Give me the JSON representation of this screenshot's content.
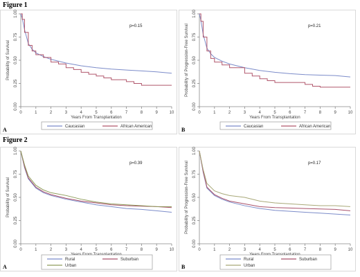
{
  "figures": [
    {
      "heading": "Figure 1"
    },
    {
      "heading": "Figure 2"
    }
  ],
  "chart_data": [
    {
      "type": "line",
      "panel": "A",
      "ylabel": "Probability of Survival",
      "xlabel": "Years From Transplantation",
      "annotation": "p=0.15",
      "xlim": [
        0,
        10
      ],
      "ylim": [
        0,
        1
      ],
      "xticks": [
        "0",
        "1",
        "2",
        "3",
        "4",
        "5",
        "6",
        "7",
        "8",
        "9",
        "10"
      ],
      "yticks": [
        "0.00",
        "0.25",
        "0.50",
        "0.75",
        "1.00"
      ],
      "series": [
        {
          "name": "Caucasian",
          "color": "#7b8bc9",
          "step": false,
          "points": [
            [
              0,
              1
            ],
            [
              0.1,
              0.95
            ],
            [
              0.25,
              0.83
            ],
            [
              0.5,
              0.68
            ],
            [
              0.75,
              0.62
            ],
            [
              1,
              0.58
            ],
            [
              1.5,
              0.54
            ],
            [
              2,
              0.51
            ],
            [
              3,
              0.47
            ],
            [
              4,
              0.44
            ],
            [
              5,
              0.42
            ],
            [
              6,
              0.405
            ],
            [
              7,
              0.395
            ],
            [
              8,
              0.385
            ],
            [
              9,
              0.375
            ],
            [
              10,
              0.36
            ]
          ]
        },
        {
          "name": "African American",
          "color": "#b0566b",
          "step": true,
          "points": [
            [
              0,
              1
            ],
            [
              0.1,
              0.94
            ],
            [
              0.25,
              0.8
            ],
            [
              0.5,
              0.66
            ],
            [
              0.75,
              0.6
            ],
            [
              1,
              0.56
            ],
            [
              1.5,
              0.53
            ],
            [
              2,
              0.48
            ],
            [
              2.5,
              0.46
            ],
            [
              3,
              0.42
            ],
            [
              3.5,
              0.4
            ],
            [
              4,
              0.37
            ],
            [
              4.5,
              0.35
            ],
            [
              5,
              0.33
            ],
            [
              5.5,
              0.31
            ],
            [
              6,
              0.29
            ],
            [
              7,
              0.27
            ],
            [
              7.5,
              0.25
            ],
            [
              8,
              0.23
            ],
            [
              10,
              0.23
            ]
          ]
        }
      ]
    },
    {
      "type": "line",
      "panel": "B",
      "ylabel": "Probability of Progression-Free Survival",
      "xlabel": "Years From Transplantation",
      "annotation": "p=0.21",
      "xlim": [
        0,
        10
      ],
      "ylim": [
        0,
        1
      ],
      "xticks": [
        "0",
        "1",
        "2",
        "3",
        "4",
        "5",
        "6",
        "7",
        "8",
        "9",
        "10"
      ],
      "yticks": [
        "0.00",
        "0.25",
        "0.50",
        "0.75",
        "1.00"
      ],
      "series": [
        {
          "name": "Caucasian",
          "color": "#7b8bc9",
          "step": false,
          "points": [
            [
              0,
              1
            ],
            [
              0.1,
              0.93
            ],
            [
              0.25,
              0.78
            ],
            [
              0.5,
              0.63
            ],
            [
              0.75,
              0.57
            ],
            [
              1,
              0.53
            ],
            [
              1.5,
              0.49
            ],
            [
              2,
              0.46
            ],
            [
              3,
              0.42
            ],
            [
              4,
              0.39
            ],
            [
              5,
              0.37
            ],
            [
              6,
              0.355
            ],
            [
              7,
              0.345
            ],
            [
              8,
              0.34
            ],
            [
              9,
              0.335
            ],
            [
              10,
              0.32
            ]
          ]
        },
        {
          "name": "African American",
          "color": "#b0566b",
          "step": true,
          "points": [
            [
              0,
              1
            ],
            [
              0.1,
              0.92
            ],
            [
              0.25,
              0.75
            ],
            [
              0.5,
              0.6
            ],
            [
              0.75,
              0.52
            ],
            [
              1,
              0.48
            ],
            [
              1.5,
              0.45
            ],
            [
              2,
              0.42
            ],
            [
              3,
              0.36
            ],
            [
              3.5,
              0.33
            ],
            [
              4,
              0.3
            ],
            [
              4.5,
              0.28
            ],
            [
              5,
              0.26
            ],
            [
              6,
              0.26
            ],
            [
              7,
              0.24
            ],
            [
              7.5,
              0.22
            ],
            [
              8,
              0.21
            ],
            [
              10,
              0.21
            ]
          ]
        }
      ]
    },
    {
      "type": "line",
      "panel": "A",
      "ylabel": "Probability of Survival",
      "xlabel": "Years From Transplantation",
      "annotation": "p=0.39",
      "xlim": [
        0,
        10
      ],
      "ylim": [
        0,
        1
      ],
      "xticks": [
        "0",
        "1",
        "2",
        "3",
        "4",
        "5",
        "6",
        "7",
        "8",
        "9",
        "10"
      ],
      "yticks": [
        "0.00",
        "0.25",
        "0.50",
        "0.75",
        "1.00"
      ],
      "series": [
        {
          "name": "Rural",
          "color": "#7b8bc9",
          "step": false,
          "points": [
            [
              0,
              1
            ],
            [
              0.25,
              0.82
            ],
            [
              0.5,
              0.7
            ],
            [
              1,
              0.6
            ],
            [
              1.5,
              0.55
            ],
            [
              2,
              0.52
            ],
            [
              3,
              0.48
            ],
            [
              4,
              0.45
            ],
            [
              5,
              0.42
            ],
            [
              6,
              0.4
            ],
            [
              7,
              0.38
            ],
            [
              8,
              0.37
            ],
            [
              9,
              0.355
            ],
            [
              10,
              0.34
            ]
          ]
        },
        {
          "name": "Suburban",
          "color": "#a8506a",
          "step": false,
          "points": [
            [
              0,
              1
            ],
            [
              0.25,
              0.83
            ],
            [
              0.5,
              0.71
            ],
            [
              1,
              0.61
            ],
            [
              1.5,
              0.56
            ],
            [
              2,
              0.53
            ],
            [
              3,
              0.49
            ],
            [
              4,
              0.46
            ],
            [
              5,
              0.44
            ],
            [
              6,
              0.42
            ],
            [
              7,
              0.41
            ],
            [
              8,
              0.405
            ],
            [
              9,
              0.4
            ],
            [
              10,
              0.39
            ]
          ]
        },
        {
          "name": "Urban",
          "color": "#8f9c5a",
          "step": false,
          "points": [
            [
              0,
              1
            ],
            [
              0.25,
              0.85
            ],
            [
              0.5,
              0.73
            ],
            [
              1,
              0.63
            ],
            [
              1.5,
              0.58
            ],
            [
              2,
              0.55
            ],
            [
              3,
              0.52
            ],
            [
              4,
              0.48
            ],
            [
              5,
              0.45
            ],
            [
              6,
              0.43
            ],
            [
              7,
              0.42
            ],
            [
              8,
              0.41
            ],
            [
              9,
              0.4
            ],
            [
              10,
              0.4
            ]
          ]
        }
      ]
    },
    {
      "type": "line",
      "panel": "B",
      "ylabel": "Probability of Progression-Free Survival",
      "xlabel": "Years From Transplantation",
      "annotation": "p=0.17",
      "xlim": [
        0,
        10
      ],
      "ylim": [
        0,
        1
      ],
      "xticks": [
        "0",
        "1",
        "2",
        "3",
        "4",
        "5",
        "6",
        "7",
        "8",
        "9",
        "10"
      ],
      "yticks": [
        "0.00",
        "0.25",
        "0.50",
        "0.75",
        "1.00"
      ],
      "series": [
        {
          "name": "Rural",
          "color": "#7b8bc9",
          "step": false,
          "points": [
            [
              0,
              1
            ],
            [
              0.25,
              0.77
            ],
            [
              0.5,
              0.6
            ],
            [
              1,
              0.52
            ],
            [
              1.5,
              0.48
            ],
            [
              2,
              0.45
            ],
            [
              3,
              0.41
            ],
            [
              4,
              0.38
            ],
            [
              5,
              0.36
            ],
            [
              6,
              0.35
            ],
            [
              7,
              0.34
            ],
            [
              8,
              0.33
            ],
            [
              9,
              0.32
            ],
            [
              10,
              0.31
            ]
          ]
        },
        {
          "name": "Suburban",
          "color": "#a8506a",
          "step": false,
          "points": [
            [
              0,
              1
            ],
            [
              0.25,
              0.78
            ],
            [
              0.5,
              0.61
            ],
            [
              1,
              0.53
            ],
            [
              1.5,
              0.49
            ],
            [
              2,
              0.46
            ],
            [
              3,
              0.43
            ],
            [
              4,
              0.4
            ],
            [
              5,
              0.39
            ],
            [
              6,
              0.385
            ],
            [
              7,
              0.38
            ],
            [
              8,
              0.375
            ],
            [
              9,
              0.37
            ],
            [
              10,
              0.355
            ]
          ]
        },
        {
          "name": "Urban",
          "color": "#a8a878",
          "step": false,
          "points": [
            [
              0,
              1
            ],
            [
              0.25,
              0.8
            ],
            [
              0.5,
              0.65
            ],
            [
              1,
              0.57
            ],
            [
              1.5,
              0.54
            ],
            [
              2,
              0.52
            ],
            [
              3,
              0.5
            ],
            [
              4,
              0.46
            ],
            [
              5,
              0.44
            ],
            [
              6,
              0.43
            ],
            [
              7,
              0.42
            ],
            [
              8,
              0.41
            ],
            [
              9,
              0.41
            ],
            [
              10,
              0.4
            ]
          ]
        }
      ]
    }
  ]
}
